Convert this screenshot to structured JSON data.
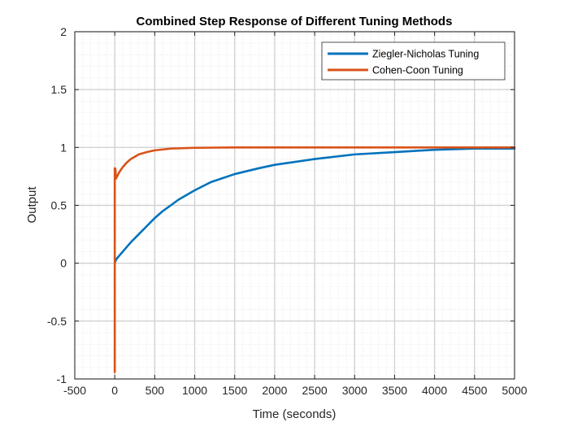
{
  "chart_data": {
    "type": "line",
    "title": "Combined Step Response of Different Tuning Methods",
    "xlabel": "Time (seconds)",
    "ylabel": "Output",
    "xlim": [
      -500,
      5000
    ],
    "ylim": [
      -1,
      2
    ],
    "xticks": [
      -500,
      0,
      500,
      1000,
      1500,
      2000,
      2500,
      3000,
      3500,
      4000,
      4500,
      5000
    ],
    "yticks": [
      -1,
      -0.5,
      0,
      0.5,
      1,
      1.5,
      2
    ],
    "xtick_labels": [
      "-500",
      "0",
      "500",
      "1000",
      "1500",
      "2000",
      "2500",
      "3000",
      "3500",
      "4000",
      "4500",
      "5000"
    ],
    "ytick_labels": [
      "-1",
      "-0.5",
      "0",
      "0.5",
      "1",
      "1.5",
      "2"
    ],
    "grid": "major and minor",
    "legend_position": "top-right",
    "series": [
      {
        "name": "Ziegler-Nicholas Tuning",
        "color": "#0072BD",
        "x": [
          0,
          10,
          25,
          50,
          100,
          200,
          300,
          400,
          500,
          600,
          700,
          800,
          1000,
          1200,
          1500,
          1800,
          2000,
          2500,
          3000,
          3500,
          4000,
          4500,
          5000
        ],
        "y": [
          0,
          0.02,
          0.04,
          0.06,
          0.1,
          0.18,
          0.25,
          0.32,
          0.39,
          0.45,
          0.5,
          0.55,
          0.63,
          0.7,
          0.77,
          0.82,
          0.85,
          0.9,
          0.94,
          0.96,
          0.98,
          0.99,
          0.99
        ]
      },
      {
        "name": "Cohen-Coon Tuning",
        "color": "#D95319",
        "x": [
          0,
          0,
          0,
          5,
          10,
          12,
          15,
          20,
          30,
          50,
          100,
          150,
          200,
          300,
          400,
          500,
          700,
          1000,
          1500,
          2000,
          3000,
          4000,
          5000
        ],
        "y": [
          0,
          -0.94,
          0.82,
          0.82,
          0.8,
          0.74,
          0.73,
          0.74,
          0.75,
          0.78,
          0.83,
          0.87,
          0.9,
          0.94,
          0.96,
          0.975,
          0.99,
          0.997,
          1.0,
          1.0,
          1.0,
          1.0,
          1.0
        ]
      }
    ]
  }
}
